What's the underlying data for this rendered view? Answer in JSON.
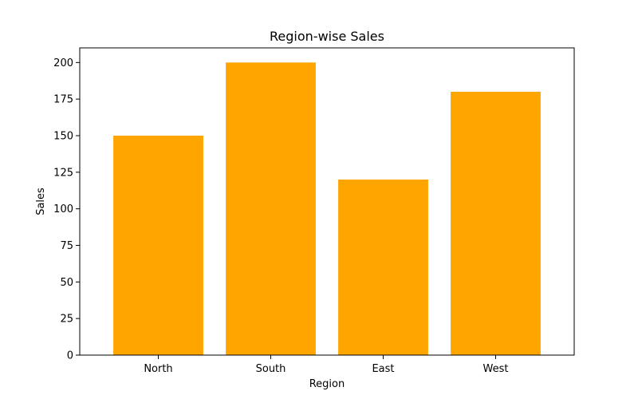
{
  "chart_data": {
    "type": "bar",
    "title": "Region-wise Sales",
    "xlabel": "Region",
    "ylabel": "Sales",
    "categories": [
      "North",
      "South",
      "East",
      "West"
    ],
    "values": [
      150,
      200,
      120,
      180
    ],
    "ylim": [
      0,
      210
    ],
    "yticks": [
      0,
      25,
      50,
      75,
      100,
      125,
      150,
      175,
      200
    ],
    "bar_color": "#ffa500",
    "grid": false,
    "legend": "none"
  }
}
